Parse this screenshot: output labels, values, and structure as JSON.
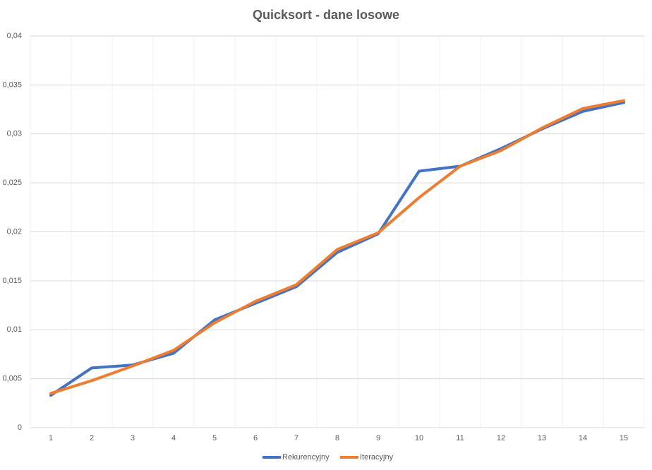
{
  "chart_data": {
    "type": "line",
    "title": "Quicksort - dane losowe",
    "categories": [
      "1",
      "2",
      "3",
      "4",
      "5",
      "6",
      "7",
      "8",
      "9",
      "10",
      "11",
      "12",
      "13",
      "14",
      "15"
    ],
    "series": [
      {
        "name": "Rekurencyjny",
        "color": "#4472c4",
        "values": [
          0.0033,
          0.0061,
          0.0064,
          0.0076,
          0.011,
          0.0127,
          0.0144,
          0.0179,
          0.0198,
          0.0262,
          0.0267,
          0.0285,
          0.0305,
          0.0323,
          0.0332
        ]
      },
      {
        "name": "Iteracyjny",
        "color": "#ed7d31",
        "values": [
          0.0035,
          0.0048,
          0.0063,
          0.0079,
          0.0107,
          0.0129,
          0.0146,
          0.0182,
          0.0199,
          0.0235,
          0.0267,
          0.0283,
          0.0306,
          0.0326,
          0.0334
        ]
      }
    ],
    "ylim": [
      0,
      0.04
    ],
    "yticks": [
      0,
      {
        "value": 0.005,
        "label": "0,005"
      },
      {
        "value": 0.01,
        "label": "0,01"
      },
      {
        "value": 0.015,
        "label": "0,015"
      },
      {
        "value": 0.02,
        "label": "0,02"
      },
      {
        "value": 0.025,
        "label": "0,025"
      },
      {
        "value": 0.03,
        "label": "0,03"
      },
      {
        "value": 0.035,
        "label": "0,035"
      },
      {
        "value": 0.04,
        "label": "0,04"
      }
    ],
    "grid": true,
    "legend": "bottom"
  }
}
